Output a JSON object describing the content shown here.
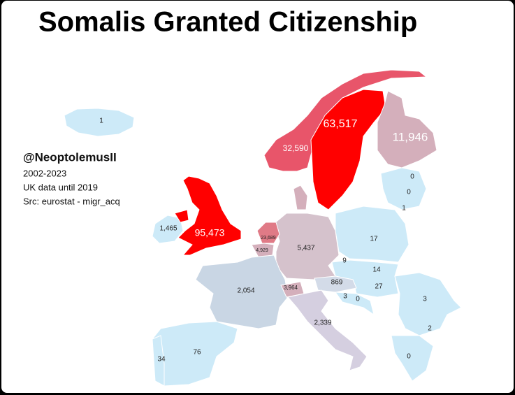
{
  "header": {
    "title": "Somalis Granted Citizenship"
  },
  "sidebar": {
    "handle": "@NeoptolemusII",
    "lines": [
      "2002-2023",
      "UK data until 2019",
      "Src: eurostat - migr_acq"
    ]
  },
  "map": {
    "labels": [
      "1",
      "63,517",
      "32,590",
      "11,946",
      "0",
      "0",
      "1",
      "1,465",
      "95,473",
      "23,689",
      "4,929",
      "5,437",
      "17",
      "9",
      "14",
      "869",
      "27",
      "2,054",
      "3,964",
      "3",
      "0",
      "3",
      "2,339",
      "2",
      "0",
      "76",
      "34"
    ]
  }
}
